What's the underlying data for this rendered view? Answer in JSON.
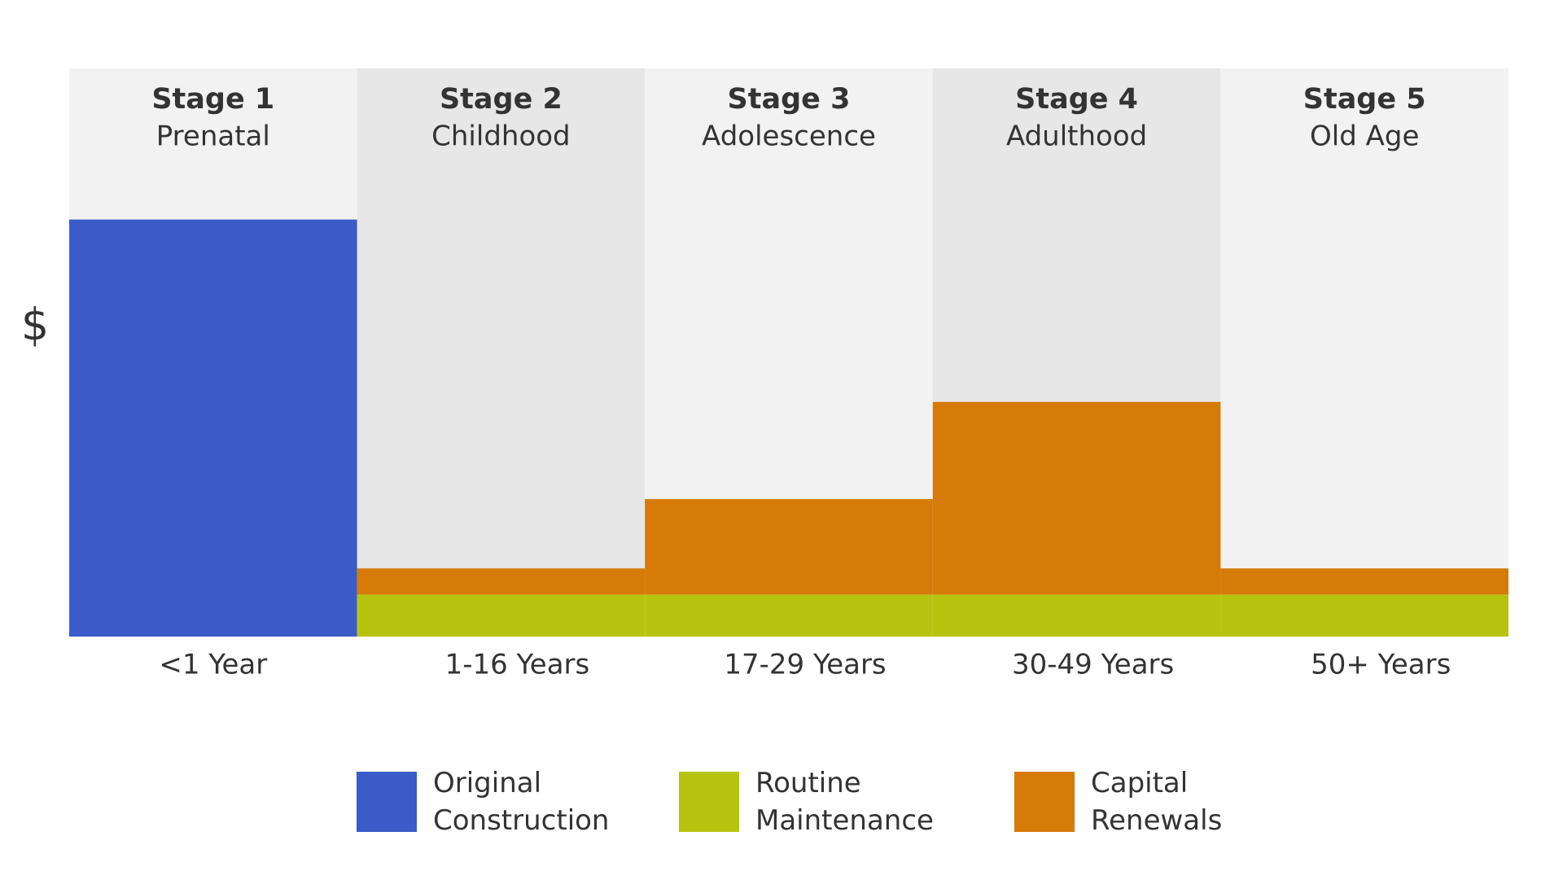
{
  "chart_data": {
    "type": "stacked-bar",
    "y_label": "$",
    "categories": [
      "Stage 1",
      "Stage 2",
      "Stage 3",
      "Stage 4",
      "Stage 5"
    ],
    "stage_names": [
      "Prenatal",
      "Childhood",
      "Adolescence",
      "Adulthood",
      "Old Age"
    ],
    "periods": [
      "<1 Year",
      "1-16 Years",
      "17-29 Years",
      "30-49 Years",
      "50+ Years"
    ],
    "ylim": [
      0,
      100
    ],
    "band_colors": [
      "#f2f2f2",
      "#e7e7e7"
    ],
    "series": [
      {
        "name": "Original Construction",
        "color": "#3b5bc8",
        "values": [
          73.4,
          null,
          null,
          null,
          null
        ]
      },
      {
        "name": "Routine Maintenance",
        "color": "#b7c40f",
        "values": [
          null,
          7.4,
          7.4,
          7.4,
          7.4
        ]
      },
      {
        "name": "Capital Renewals",
        "color": "#d67a08",
        "values": [
          null,
          4.6,
          16.8,
          33.9,
          4.6
        ]
      }
    ]
  }
}
